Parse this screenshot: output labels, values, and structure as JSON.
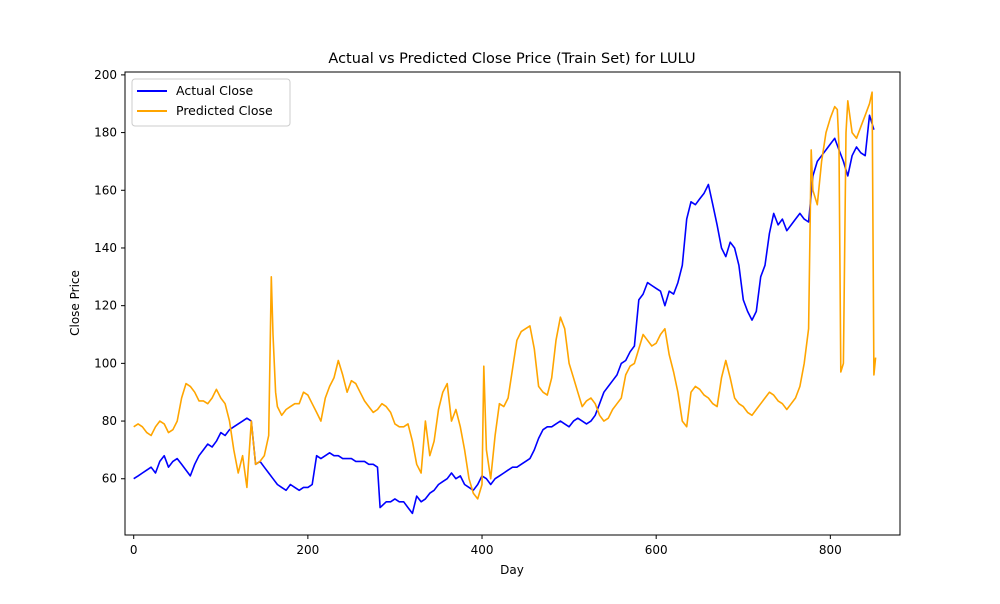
{
  "chart_data": {
    "type": "line",
    "title": "Actual vs Predicted Close Price (Train Set) for LULU",
    "xlabel": "Day",
    "ylabel": "Close Price",
    "xlim": [
      -10,
      880
    ],
    "ylim": [
      40.5,
      201
    ],
    "xticks": [
      0,
      200,
      400,
      600,
      800
    ],
    "yticks": [
      60,
      80,
      100,
      120,
      140,
      160,
      180,
      200
    ],
    "grid": false,
    "legend": {
      "placement": "top-left",
      "entries": [
        "Actual Close",
        "Predicted Close"
      ]
    },
    "series": [
      {
        "name": "Actual Close",
        "color": "#0000ff",
        "x": [
          0,
          5,
          10,
          15,
          20,
          25,
          30,
          35,
          40,
          45,
          50,
          55,
          60,
          65,
          70,
          75,
          80,
          85,
          90,
          95,
          100,
          105,
          110,
          115,
          120,
          125,
          130,
          135,
          140,
          145,
          150,
          155,
          160,
          165,
          170,
          175,
          180,
          185,
          190,
          195,
          200,
          205,
          210,
          215,
          220,
          225,
          230,
          235,
          240,
          245,
          250,
          255,
          260,
          265,
          270,
          275,
          280,
          283,
          290,
          295,
          300,
          305,
          310,
          315,
          320,
          325,
          330,
          335,
          340,
          345,
          350,
          355,
          360,
          365,
          370,
          375,
          380,
          385,
          390,
          395,
          400,
          405,
          410,
          415,
          420,
          425,
          430,
          435,
          440,
          445,
          450,
          455,
          460,
          465,
          470,
          475,
          480,
          485,
          490,
          495,
          500,
          505,
          510,
          515,
          520,
          525,
          530,
          535,
          540,
          545,
          550,
          555,
          560,
          565,
          570,
          575,
          580,
          585,
          590,
          595,
          600,
          605,
          610,
          615,
          620,
          625,
          630,
          635,
          640,
          645,
          650,
          655,
          660,
          665,
          670,
          675,
          680,
          685,
          690,
          695,
          700,
          705,
          710,
          715,
          720,
          725,
          730,
          735,
          740,
          745,
          750,
          755,
          760,
          765,
          770,
          775,
          780,
          785,
          790,
          795,
          800,
          805,
          810,
          815,
          820,
          825,
          830,
          835,
          840,
          845,
          850
        ],
        "values": [
          60,
          61,
          62,
          63,
          64,
          62,
          66,
          68,
          64,
          66,
          67,
          65,
          63,
          61,
          65,
          68,
          70,
          72,
          71,
          73,
          76,
          75,
          77,
          78,
          79,
          80,
          81,
          80,
          65,
          66,
          64,
          62,
          60,
          58,
          57,
          56,
          58,
          57,
          56,
          57,
          57,
          58,
          68,
          67,
          68,
          69,
          68,
          68,
          67,
          67,
          67,
          66,
          66,
          66,
          65,
          65,
          64,
          50,
          52,
          52,
          53,
          52,
          52,
          50,
          48,
          54,
          52,
          53,
          55,
          56,
          58,
          59,
          60,
          62,
          60,
          61,
          58,
          57,
          56,
          58,
          61,
          60,
          58,
          60,
          61,
          62,
          63,
          64,
          64,
          65,
          66,
          67,
          70,
          74,
          77,
          78,
          78,
          79,
          80,
          79,
          78,
          80,
          81,
          80,
          79,
          80,
          82,
          86,
          90,
          92,
          94,
          96,
          100,
          101,
          104,
          106,
          122,
          124,
          128,
          127,
          126,
          125,
          120,
          125,
          124,
          128,
          134,
          150,
          156,
          155,
          157,
          159,
          162,
          155,
          148,
          140,
          137,
          142,
          140,
          134,
          122,
          118,
          115,
          118,
          130,
          134,
          145,
          152,
          148,
          150,
          146,
          148,
          150,
          152,
          150,
          149,
          165,
          170,
          172,
          174,
          176,
          178,
          174,
          170,
          165,
          172,
          175,
          173,
          172,
          186,
          181
        ]
      },
      {
        "name": "Predicted Close",
        "color": "#ffa500",
        "x": [
          0,
          5,
          10,
          15,
          20,
          25,
          30,
          35,
          40,
          45,
          50,
          55,
          60,
          65,
          70,
          75,
          80,
          85,
          90,
          95,
          100,
          105,
          110,
          115,
          120,
          125,
          130,
          135,
          140,
          145,
          150,
          155,
          158,
          160,
          163,
          165,
          170,
          175,
          180,
          185,
          190,
          195,
          200,
          205,
          210,
          215,
          220,
          225,
          230,
          235,
          240,
          245,
          250,
          255,
          260,
          265,
          270,
          275,
          280,
          285,
          290,
          295,
          300,
          305,
          310,
          315,
          320,
          325,
          330,
          335,
          340,
          345,
          350,
          355,
          360,
          365,
          370,
          375,
          380,
          385,
          390,
          395,
          400,
          402,
          405,
          410,
          415,
          420,
          425,
          430,
          435,
          440,
          445,
          450,
          455,
          460,
          465,
          470,
          475,
          480,
          485,
          490,
          495,
          500,
          505,
          510,
          515,
          520,
          525,
          530,
          535,
          540,
          545,
          550,
          555,
          560,
          565,
          570,
          575,
          580,
          585,
          590,
          595,
          600,
          605,
          610,
          615,
          620,
          625,
          630,
          635,
          640,
          645,
          650,
          655,
          660,
          665,
          670,
          675,
          680,
          685,
          690,
          695,
          700,
          705,
          710,
          715,
          720,
          725,
          730,
          735,
          740,
          745,
          750,
          755,
          760,
          765,
          770,
          775,
          778,
          780,
          785,
          790,
          795,
          800,
          805,
          808,
          810,
          812,
          815,
          818,
          820,
          825,
          830,
          835,
          840,
          845,
          848,
          850,
          852
        ],
        "values": [
          78,
          79,
          78,
          76,
          75,
          78,
          80,
          79,
          76,
          77,
          80,
          88,
          93,
          92,
          90,
          87,
          87,
          86,
          88,
          91,
          88,
          86,
          80,
          70,
          62,
          68,
          57,
          80,
          65,
          66,
          68,
          75,
          130,
          110,
          90,
          85,
          82,
          84,
          85,
          86,
          86,
          90,
          89,
          86,
          83,
          80,
          88,
          92,
          95,
          101,
          96,
          90,
          94,
          93,
          90,
          87,
          85,
          83,
          84,
          86,
          85,
          83,
          79,
          78,
          78,
          79,
          73,
          65,
          62,
          80,
          68,
          73,
          84,
          90,
          93,
          80,
          84,
          78,
          70,
          60,
          55,
          53,
          58,
          99,
          70,
          60,
          75,
          86,
          85,
          88,
          98,
          108,
          111,
          112,
          113,
          105,
          92,
          90,
          89,
          95,
          108,
          116,
          112,
          100,
          95,
          90,
          85,
          87,
          88,
          86,
          82,
          80,
          81,
          84,
          86,
          88,
          96,
          99,
          100,
          105,
          110,
          108,
          106,
          107,
          110,
          112,
          103,
          97,
          90,
          80,
          78,
          90,
          92,
          91,
          89,
          88,
          86,
          85,
          95,
          101,
          95,
          88,
          86,
          85,
          83,
          82,
          84,
          86,
          88,
          90,
          89,
          87,
          86,
          84,
          86,
          88,
          92,
          100,
          112,
          174,
          160,
          155,
          170,
          180,
          185,
          189,
          188,
          175,
          97,
          100,
          180,
          191,
          180,
          178,
          182,
          186,
          190,
          194,
          96,
          102
        ]
      }
    ]
  }
}
